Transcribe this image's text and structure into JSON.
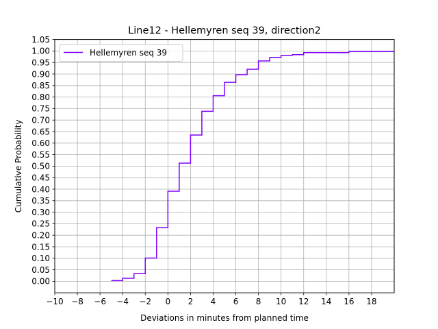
{
  "chart_data": {
    "type": "line",
    "step": "post",
    "title": "Line12 - Hellemyren seq 39, direction2",
    "xlabel": "Deviations in minutes from planned time",
    "ylabel": "Cumulative Probability",
    "xlim": [
      -10,
      20
    ],
    "ylim": [
      -0.05,
      1.05
    ],
    "xticks": [
      -10,
      -8,
      -6,
      -4,
      -2,
      0,
      2,
      4,
      6,
      8,
      10,
      12,
      14,
      16,
      18
    ],
    "yticks": [
      0.0,
      0.05,
      0.1,
      0.15,
      0.2,
      0.25,
      0.3,
      0.35,
      0.4,
      0.45,
      0.5,
      0.55,
      0.6,
      0.65,
      0.7,
      0.75,
      0.8,
      0.85,
      0.9,
      0.95,
      1.0,
      1.05
    ],
    "grid": true,
    "legend_position": "upper-left",
    "colors": {
      "series": "#7f00ff",
      "grid": "#b0b0b0"
    },
    "series": [
      {
        "name": "Hellemyren seq 39",
        "x": [
          -5,
          -4,
          -3,
          -2,
          -1,
          0,
          1,
          2,
          3,
          4,
          5,
          6,
          7,
          8,
          9,
          10,
          11,
          12,
          16,
          20
        ],
        "y": [
          0.003,
          0.013,
          0.033,
          0.101,
          0.233,
          0.391,
          0.513,
          0.635,
          0.738,
          0.806,
          0.864,
          0.897,
          0.921,
          0.957,
          0.972,
          0.981,
          0.984,
          0.993,
          0.998,
          0.998
        ]
      }
    ]
  }
}
